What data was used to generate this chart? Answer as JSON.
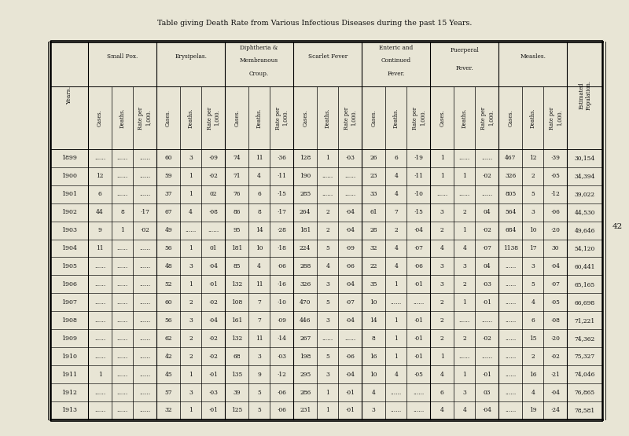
{
  "title": "Table giving Death Rate from Various Infectious Diseases during the past 15 Years.",
  "bg_color": "#e8e5d5",
  "text_color": "#111111",
  "group_names": [
    "Small Pox.",
    "Erysipelas.",
    "Diphtheria &\nMembranous\nCroup.",
    "Scarlet Fever",
    "Enteric and\nContinued\nFever.",
    "Puerperal\nFever.",
    "Measles."
  ],
  "sub_labels": [
    "Cases.",
    "Deaths.",
    "Rate per\n1,000."
  ],
  "years": [
    1899,
    1900,
    1901,
    1902,
    1903,
    1904,
    1905,
    1906,
    1907,
    1908,
    1909,
    1910,
    1911,
    1912,
    1913
  ],
  "rows": [
    [
      "......",
      "......",
      "......",
      "60",
      "3",
      "·09",
      "74",
      "11",
      "·36",
      "128",
      "1",
      "·03",
      "26",
      "6",
      "·19",
      "1",
      "......",
      "......",
      "467",
      "12",
      "·39",
      "30,154"
    ],
    [
      "12",
      "......",
      "......",
      "59",
      "1",
      "·02",
      "71",
      "4",
      "·11",
      "190",
      "......",
      "......",
      "23",
      "4",
      "·11",
      "1",
      "1",
      "·02",
      "326",
      "2",
      "·05",
      "34,394"
    ],
    [
      "6",
      "......",
      "......",
      "37",
      "1",
      "02",
      "76",
      "6",
      "·15",
      "285",
      "......",
      "......",
      "33",
      "4",
      "·10",
      "......",
      "......",
      "......",
      "805",
      "5",
      "·12",
      "39,022"
    ],
    [
      "44",
      "8",
      "·17",
      "67",
      "4",
      "·08",
      "86",
      "8",
      "·17",
      "264",
      "2",
      "·04",
      "61",
      "7",
      "·15",
      "3",
      "2",
      "04",
      "564",
      "3",
      "·06",
      "44,530"
    ],
    [
      "9",
      "1",
      "·02",
      "49",
      "......",
      "......",
      "95",
      "14",
      "·28",
      "181",
      "2",
      "·04",
      "28",
      "2",
      "·04",
      "2",
      "1",
      "·02",
      "684",
      "10",
      "·20",
      "49,646"
    ],
    [
      "11",
      "......",
      "......",
      "56",
      "1",
      "01",
      "181",
      "10",
      "·18",
      "224",
      "5",
      "·09",
      "32",
      "4",
      "·07",
      "4",
      "4",
      "·07",
      "1138",
      "17",
      "30",
      "54,120"
    ],
    [
      "......",
      "......",
      "......",
      "48",
      "3",
      "·04",
      "85",
      "4",
      "·06",
      "288",
      "4",
      "·06",
      "22",
      "4",
      "·06",
      "3",
      "3",
      "04",
      "......",
      "3",
      "·04",
      "60,441"
    ],
    [
      "......",
      "......",
      "......",
      "52",
      "1",
      "·01",
      "132",
      "11",
      "·16",
      "326",
      "3",
      "·04",
      "35",
      "1",
      "·01",
      "3",
      "2",
      "·03",
      "......",
      "5",
      "·07",
      "65,165"
    ],
    [
      "......",
      "......",
      "......",
      "60",
      "2",
      "·02",
      "108",
      "7",
      "·10",
      "470",
      "5",
      "·07",
      "10",
      "......",
      "......",
      "2",
      "1",
      "·01",
      "......",
      "4",
      "·05",
      "66,698"
    ],
    [
      "......",
      "......",
      "......",
      "56",
      "3",
      "·04",
      "161",
      "7",
      "·09",
      "446",
      "3",
      "·04",
      "14",
      "1",
      "·01",
      "2",
      "......",
      "......",
      "......",
      "6",
      "·08",
      "71,221"
    ],
    [
      "......",
      "......",
      "......",
      "62",
      "2",
      "·02",
      "132",
      "11",
      "·14",
      "267",
      "......",
      "......",
      "8",
      "1",
      "·01",
      "2",
      "2",
      "·02",
      "......",
      "15",
      "·20",
      "74,362"
    ],
    [
      "......",
      "......",
      "......",
      "42",
      "2",
      "·02",
      "68",
      "3",
      "·03",
      "198",
      "5",
      "·06",
      "16",
      "1",
      "·01",
      "1",
      "......",
      "......",
      "......",
      "2",
      "·02",
      "75,327"
    ],
    [
      "1",
      "......",
      "......",
      "45",
      "1",
      "·01",
      "135",
      "9",
      "·12",
      "295",
      "3",
      "·04",
      "10",
      "4",
      "·05",
      "4",
      "1",
      "·01",
      "......",
      "16",
      "·21",
      "74,046"
    ],
    [
      "......",
      "......",
      "......",
      "57",
      "3",
      "·03",
      "39",
      "5",
      "·06",
      "286",
      "1",
      "·01",
      "4",
      "......",
      "......",
      "6",
      "3",
      "03",
      "......",
      "4",
      "·04",
      "76,865"
    ],
    [
      "......",
      "......",
      "......",
      "32",
      "1",
      "·01",
      "125",
      "5",
      "·06",
      "231",
      "1",
      "·01",
      "3",
      "......",
      "......",
      "4",
      "4",
      "·04",
      "......",
      "19",
      "·24",
      "78,581"
    ]
  ]
}
